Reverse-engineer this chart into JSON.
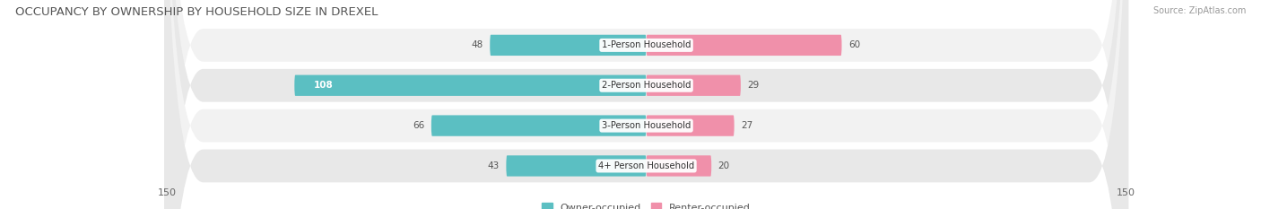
{
  "title": "OCCUPANCY BY OWNERSHIP BY HOUSEHOLD SIZE IN DREXEL",
  "source": "Source: ZipAtlas.com",
  "categories": [
    "1-Person Household",
    "2-Person Household",
    "3-Person Household",
    "4+ Person Household"
  ],
  "owner_values": [
    48,
    108,
    66,
    43
  ],
  "renter_values": [
    60,
    29,
    27,
    20
  ],
  "owner_color": "#5bbfc2",
  "renter_color": "#f090aa",
  "row_bg_light": "#f2f2f2",
  "row_bg_dark": "#e8e8e8",
  "axis_max": 150,
  "title_fontsize": 9.5,
  "bar_fontsize": 7.5,
  "legend_owner": "Owner-occupied",
  "legend_renter": "Renter-occupied"
}
